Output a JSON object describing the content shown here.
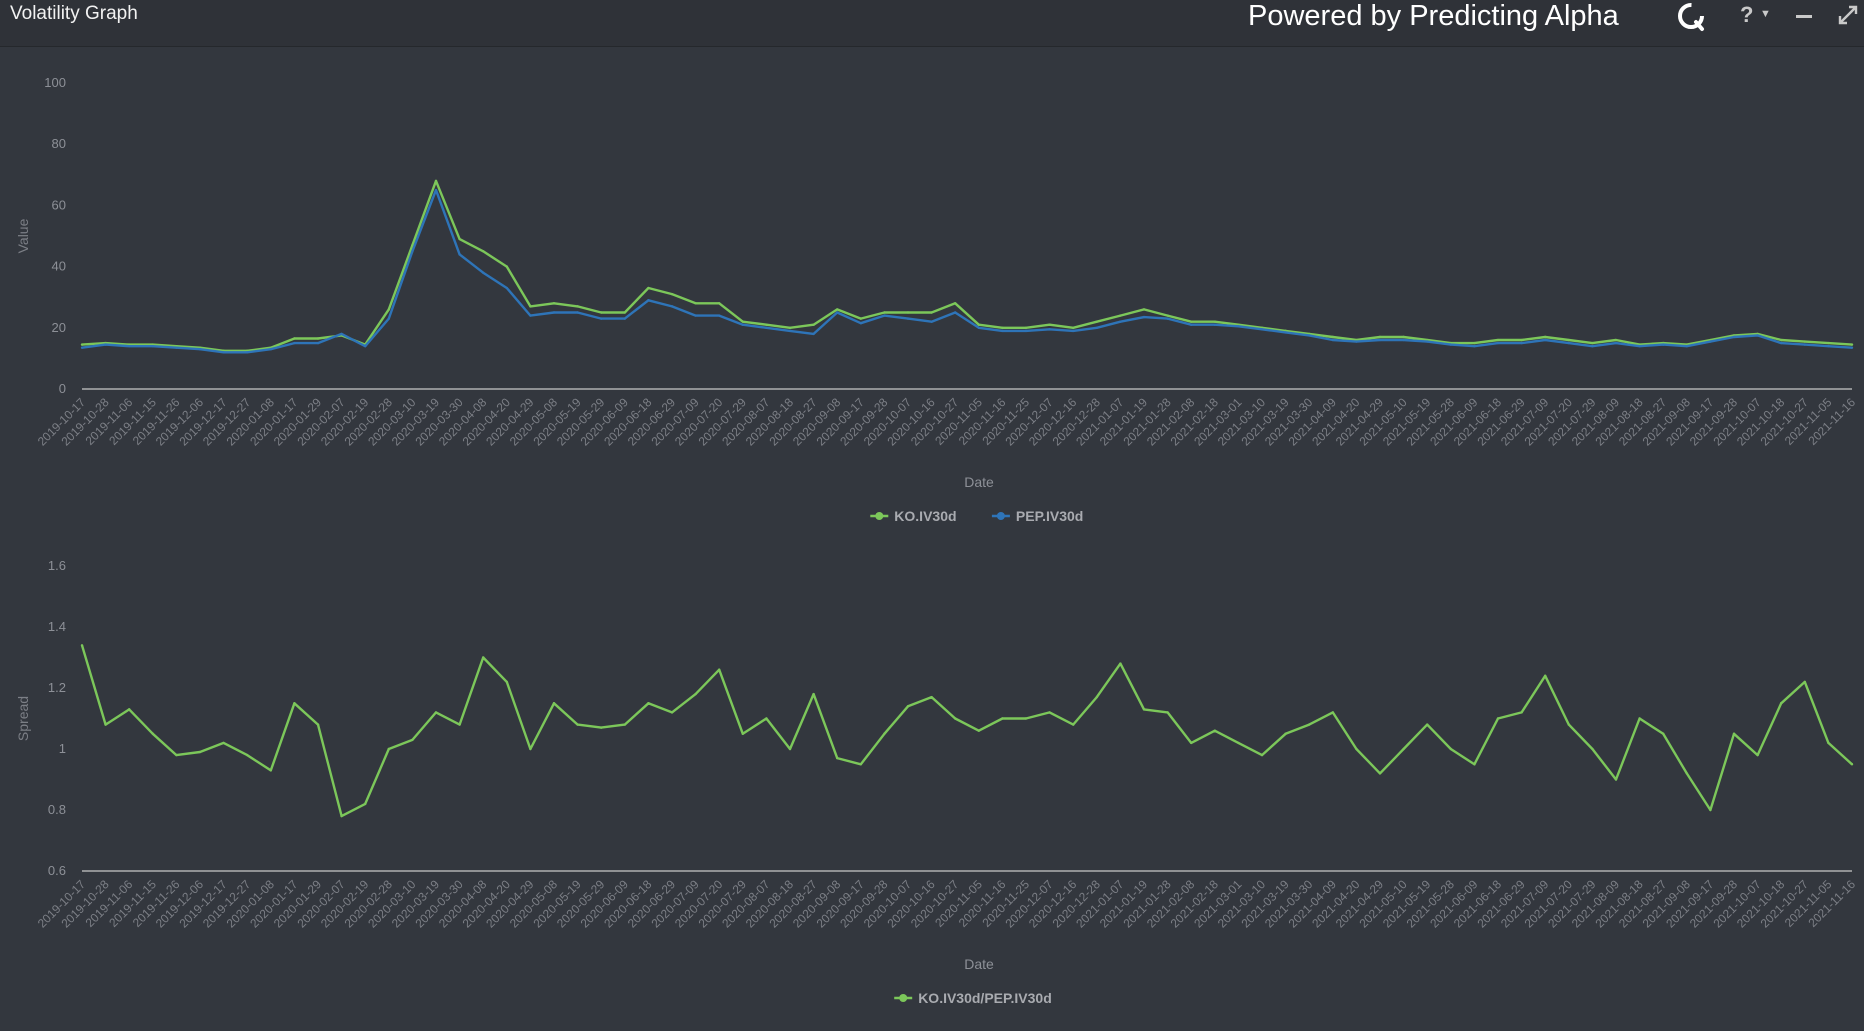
{
  "window": {
    "title": "Volatility Graph",
    "powered_by": "Powered by Predicting Alpha",
    "help_label": "?",
    "brand_icon": "predicting-alpha-logo-icon",
    "help_icon": "question-icon",
    "minimize_icon": "minimize-icon",
    "expand_icon": "expand-icon"
  },
  "chart_data": [
    {
      "type": "line",
      "xlabel": "Date",
      "ylabel": "Value",
      "ylim": [
        0,
        100
      ],
      "yticks": [
        0,
        20,
        40,
        60,
        80,
        100
      ],
      "grid": false,
      "legend_position": "bottom-center",
      "x": [
        "2019-10-17",
        "2019-10-28",
        "2019-11-06",
        "2019-11-15",
        "2019-11-26",
        "2019-12-06",
        "2019-12-17",
        "2019-12-27",
        "2020-01-08",
        "2020-01-17",
        "2020-01-29",
        "2020-02-07",
        "2020-02-19",
        "2020-02-28",
        "2020-03-10",
        "2020-03-19",
        "2020-03-30",
        "2020-04-08",
        "2020-04-20",
        "2020-04-29",
        "2020-05-08",
        "2020-05-19",
        "2020-05-29",
        "2020-06-09",
        "2020-06-18",
        "2020-06-29",
        "2020-07-09",
        "2020-07-20",
        "2020-07-29",
        "2020-08-07",
        "2020-08-18",
        "2020-08-27",
        "2020-09-08",
        "2020-09-17",
        "2020-09-28",
        "2020-10-07",
        "2020-10-16",
        "2020-10-27",
        "2020-11-05",
        "2020-11-16",
        "2020-11-25",
        "2020-12-07",
        "2020-12-16",
        "2020-12-28",
        "2021-01-07",
        "2021-01-19",
        "2021-01-28",
        "2021-02-08",
        "2021-02-18",
        "2021-03-01",
        "2021-03-10",
        "2021-03-19",
        "2021-03-30",
        "2021-04-09",
        "2021-04-20",
        "2021-04-29",
        "2021-05-10",
        "2021-05-19",
        "2021-05-28",
        "2021-06-09",
        "2021-06-18",
        "2021-06-29",
        "2021-07-09",
        "2021-07-20",
        "2021-07-29",
        "2021-08-09",
        "2021-08-18",
        "2021-08-27",
        "2021-09-08",
        "2021-09-17",
        "2021-09-28",
        "2021-10-07",
        "2021-10-18",
        "2021-10-27",
        "2021-11-05",
        "2021-11-16"
      ],
      "series": [
        {
          "name": "KO.IV30d",
          "color": "#7cc75a",
          "values": [
            14.5,
            15,
            14.5,
            14.5,
            14,
            13.5,
            12.5,
            12.5,
            13.5,
            16.5,
            16.5,
            17.5,
            14.5,
            26,
            47,
            68,
            49,
            45,
            40,
            27,
            28,
            27,
            25,
            25,
            33,
            31,
            28,
            28,
            22,
            21,
            20,
            21,
            26,
            23,
            25,
            25,
            25,
            28,
            21,
            20,
            20,
            21,
            20,
            22,
            24,
            26,
            24,
            22,
            22,
            21,
            20,
            19,
            18,
            17,
            16,
            17,
            17,
            16,
            15,
            15,
            16,
            16,
            17,
            16,
            15,
            16,
            14.5,
            15,
            14.5,
            16,
            17.5,
            18,
            16,
            15.5,
            15,
            14.5
          ]
        },
        {
          "name": "PEP.IV30d",
          "color": "#2e74b8",
          "values": [
            13.5,
            14.5,
            14,
            14,
            13.5,
            13,
            12,
            12,
            13,
            15,
            15,
            18,
            14,
            23,
            45,
            65,
            44,
            38,
            33,
            24,
            25,
            25,
            23,
            23,
            29,
            27,
            24,
            24,
            21,
            20,
            19,
            18,
            25,
            21.5,
            24,
            23,
            22,
            25,
            20,
            19,
            19,
            19.5,
            19,
            20,
            22,
            23.5,
            23,
            21,
            21,
            20.5,
            19.5,
            18.5,
            17.5,
            16,
            15.5,
            16,
            16,
            15.5,
            14.5,
            14,
            15,
            15,
            16,
            15,
            14,
            15,
            14,
            14.5,
            14,
            15.5,
            17,
            17.5,
            15,
            14.5,
            14,
            13.5
          ]
        }
      ]
    },
    {
      "type": "line",
      "xlabel": "Date",
      "ylabel": "Spread",
      "ylim": [
        0.6,
        1.6
      ],
      "yticks": [
        0.6,
        0.8,
        1,
        1.2,
        1.4,
        1.6
      ],
      "grid": false,
      "legend_position": "bottom-center",
      "x": [
        "2019-10-17",
        "2019-10-28",
        "2019-11-06",
        "2019-11-15",
        "2019-11-26",
        "2019-12-06",
        "2019-12-17",
        "2019-12-27",
        "2020-01-08",
        "2020-01-17",
        "2020-01-29",
        "2020-02-07",
        "2020-02-19",
        "2020-02-28",
        "2020-03-10",
        "2020-03-19",
        "2020-03-30",
        "2020-04-08",
        "2020-04-20",
        "2020-04-29",
        "2020-05-08",
        "2020-05-19",
        "2020-05-29",
        "2020-06-09",
        "2020-06-18",
        "2020-06-29",
        "2020-07-09",
        "2020-07-20",
        "2020-07-29",
        "2020-08-07",
        "2020-08-18",
        "2020-08-27",
        "2020-09-08",
        "2020-09-17",
        "2020-09-28",
        "2020-10-07",
        "2020-10-16",
        "2020-10-27",
        "2020-11-05",
        "2020-11-16",
        "2020-11-25",
        "2020-12-07",
        "2020-12-16",
        "2020-12-28",
        "2021-01-07",
        "2021-01-19",
        "2021-01-28",
        "2021-02-08",
        "2021-02-18",
        "2021-03-01",
        "2021-03-10",
        "2021-03-19",
        "2021-03-30",
        "2021-04-09",
        "2021-04-20",
        "2021-04-29",
        "2021-05-10",
        "2021-05-19",
        "2021-05-28",
        "2021-06-09",
        "2021-06-18",
        "2021-06-29",
        "2021-07-09",
        "2021-07-20",
        "2021-07-29",
        "2021-08-09",
        "2021-08-18",
        "2021-08-27",
        "2021-09-08",
        "2021-09-17",
        "2021-09-28",
        "2021-10-07",
        "2021-10-18",
        "2021-10-27",
        "2021-11-05",
        "2021-11-16"
      ],
      "series": [
        {
          "name": "KO.IV30d/PEP.IV30d",
          "color": "#7cc75a",
          "values": [
            1.34,
            1.08,
            1.13,
            1.05,
            0.98,
            0.99,
            1.02,
            0.98,
            0.93,
            1.15,
            1.08,
            0.78,
            0.82,
            1.0,
            1.03,
            1.12,
            1.08,
            1.3,
            1.22,
            1.0,
            1.15,
            1.08,
            1.07,
            1.08,
            1.15,
            1.12,
            1.18,
            1.26,
            1.05,
            1.1,
            1.0,
            1.18,
            0.97,
            0.95,
            1.05,
            1.14,
            1.17,
            1.1,
            1.06,
            1.1,
            1.1,
            1.12,
            1.08,
            1.17,
            1.28,
            1.13,
            1.12,
            1.02,
            1.06,
            1.02,
            0.98,
            1.05,
            1.08,
            1.12,
            1.0,
            0.92,
            1.0,
            1.08,
            1.0,
            0.95,
            1.1,
            1.12,
            1.24,
            1.08,
            1.0,
            0.9,
            1.1,
            1.05,
            0.92,
            0.8,
            1.05,
            0.98,
            1.15,
            1.22,
            1.02,
            0.95
          ]
        }
      ]
    }
  ]
}
